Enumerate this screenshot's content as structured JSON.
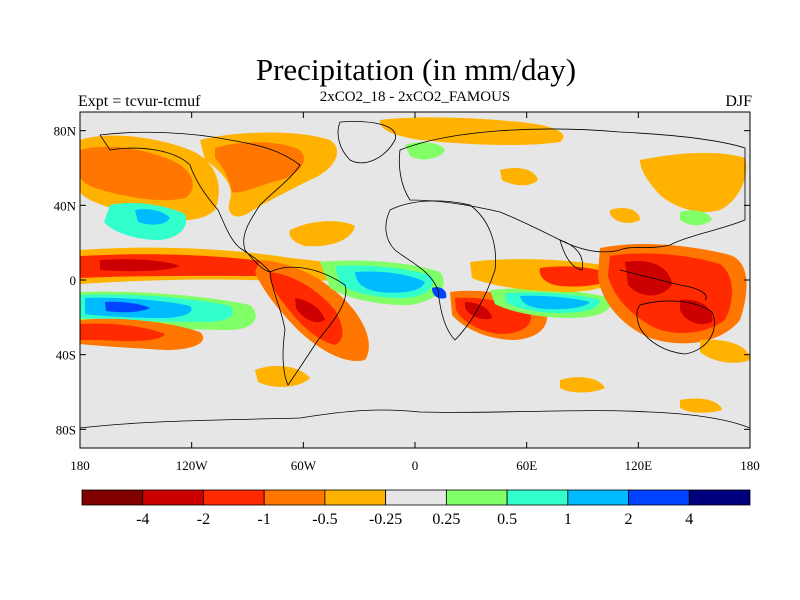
{
  "header": {
    "title": "Precipitation (in mm/day)",
    "subtitle": "2xCO2_18 - 2xCO2_FAMOUS",
    "experiment": "Expt = tcvur-tcmuf",
    "season": "DJF"
  },
  "map": {
    "type": "filled-contour-map",
    "lat_ticks": [
      "80N",
      "40N",
      "0",
      "40S",
      "80S"
    ],
    "lon_ticks": [
      "180",
      "120W",
      "60W",
      "0",
      "60E",
      "120E",
      "180"
    ],
    "lat_values": [
      80,
      40,
      0,
      -40,
      -80
    ],
    "lon_values": [
      -180,
      -120,
      -60,
      0,
      60,
      120,
      180
    ],
    "colors": {
      "background": "#e6e6e6",
      "coast": "#000000"
    }
  },
  "colorbar": {
    "colors": [
      "#800000",
      "#cc0000",
      "#ff2a00",
      "#ff7700",
      "#ffb300",
      "#e6e6e6",
      "#80ff66",
      "#33ffcc",
      "#00bbff",
      "#0044ff",
      "#00007f"
    ],
    "labels": [
      "-4",
      "-2",
      "-1",
      "-0.5",
      "-0.25",
      "0.25",
      "0.5",
      "1",
      "2",
      "4"
    ]
  }
}
